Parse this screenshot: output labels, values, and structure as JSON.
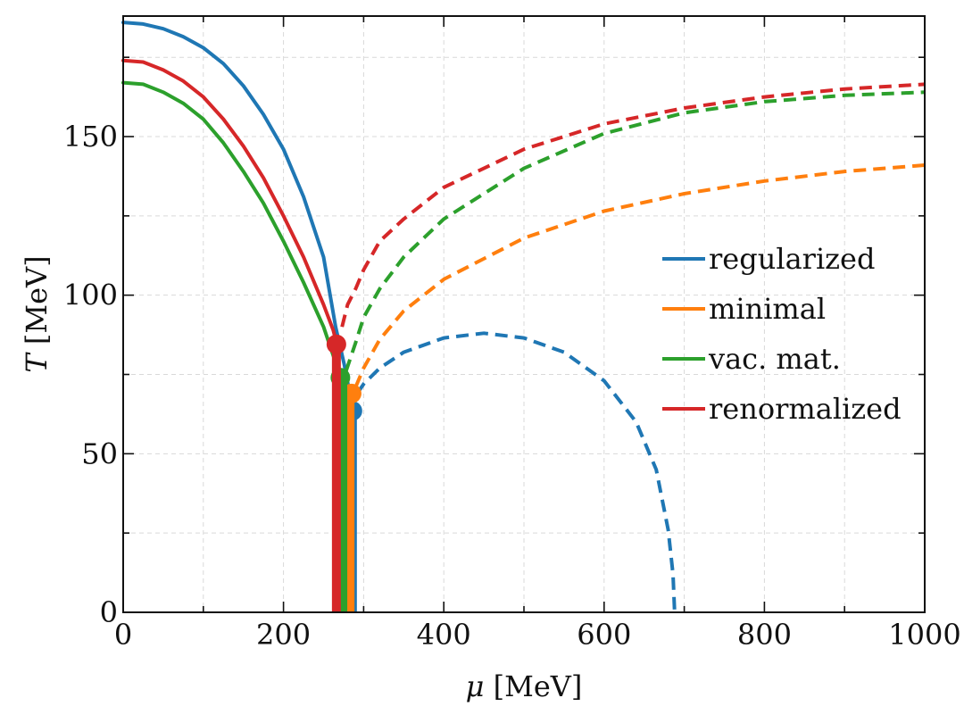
{
  "chart_data": {
    "type": "line",
    "title": "",
    "xlabel_var": "μ",
    "xlabel_unit": "[MeV]",
    "ylabel_var": "T",
    "ylabel_unit": "[MeV]",
    "xlim": [
      0,
      1000
    ],
    "ylim": [
      0,
      188
    ],
    "x_ticks": [
      0,
      200,
      400,
      600,
      800,
      1000
    ],
    "y_ticks": [
      0,
      50,
      100,
      150
    ],
    "x_minor_ticks": [
      100,
      300,
      500,
      700,
      900
    ],
    "y_minor_ticks": [
      25,
      75,
      125,
      175
    ],
    "grid": true,
    "legend_position": "center-right",
    "series": [
      {
        "name": "regularized",
        "color": "#1f77b4",
        "solid": [
          [
            0,
            186
          ],
          [
            25,
            185.5
          ],
          [
            50,
            184
          ],
          [
            75,
            181.5
          ],
          [
            100,
            178
          ],
          [
            125,
            173
          ],
          [
            150,
            166
          ],
          [
            175,
            157
          ],
          [
            200,
            146
          ],
          [
            225,
            131
          ],
          [
            250,
            112
          ],
          [
            265,
            90
          ],
          [
            276,
            78
          ],
          [
            282,
            70
          ],
          [
            286,
            64
          ]
        ],
        "dashed": [
          [
            292,
            69
          ],
          [
            300,
            72
          ],
          [
            320,
            77
          ],
          [
            350,
            82
          ],
          [
            400,
            86.5
          ],
          [
            450,
            88
          ],
          [
            500,
            86.5
          ],
          [
            550,
            82
          ],
          [
            600,
            73
          ],
          [
            640,
            60
          ],
          [
            665,
            45
          ],
          [
            680,
            26
          ],
          [
            686,
            12
          ],
          [
            688,
            0
          ]
        ],
        "critical_point": [
          286,
          63.5
        ],
        "first_order_line": [
          [
            286,
            0
          ],
          [
            286,
            63.5
          ]
        ]
      },
      {
        "name": "minimal",
        "color": "#ff7f0e",
        "solid": [
          [
            282,
            69
          ]
        ],
        "dashed": [
          [
            290,
            71
          ],
          [
            300,
            77
          ],
          [
            320,
            86
          ],
          [
            350,
            95
          ],
          [
            400,
            105
          ],
          [
            500,
            118
          ],
          [
            600,
            126.5
          ],
          [
            700,
            132
          ],
          [
            800,
            136
          ],
          [
            900,
            139
          ],
          [
            1000,
            141
          ]
        ],
        "critical_point": [
          285,
          69
        ],
        "first_order_line": [
          [
            283,
            0
          ],
          [
            283,
            69
          ]
        ]
      },
      {
        "name": "vac. mat.",
        "color": "#2ca02c",
        "solid": [
          [
            0,
            167
          ],
          [
            25,
            166.5
          ],
          [
            50,
            164
          ],
          [
            75,
            160.5
          ],
          [
            100,
            155.5
          ],
          [
            125,
            148
          ],
          [
            150,
            139
          ],
          [
            175,
            129
          ],
          [
            200,
            117
          ],
          [
            225,
            104
          ],
          [
            250,
            90
          ],
          [
            262,
            81
          ],
          [
            268,
            76
          ],
          [
            272,
            74
          ]
        ],
        "dashed": [
          [
            278,
            76
          ],
          [
            290,
            85
          ],
          [
            300,
            93
          ],
          [
            320,
            102
          ],
          [
            350,
            112
          ],
          [
            400,
            124
          ],
          [
            500,
            140
          ],
          [
            600,
            151
          ],
          [
            700,
            157.5
          ],
          [
            800,
            161
          ],
          [
            900,
            163
          ],
          [
            1000,
            164
          ]
        ],
        "critical_point": [
          271,
          74
        ],
        "first_order_line": [
          [
            274,
            0
          ],
          [
            274,
            74
          ]
        ]
      },
      {
        "name": "renormalized",
        "color": "#d62728",
        "solid": [
          [
            0,
            174
          ],
          [
            25,
            173.5
          ],
          [
            50,
            171
          ],
          [
            75,
            167.5
          ],
          [
            100,
            162.5
          ],
          [
            125,
            155.5
          ],
          [
            150,
            147
          ],
          [
            175,
            137
          ],
          [
            200,
            125
          ],
          [
            225,
            112
          ],
          [
            250,
            97
          ],
          [
            262,
            89
          ],
          [
            266,
            85
          ]
        ],
        "dashed": [
          [
            273,
            90
          ],
          [
            280,
            97
          ],
          [
            290,
            102
          ],
          [
            300,
            108
          ],
          [
            320,
            117
          ],
          [
            350,
            124
          ],
          [
            400,
            134
          ],
          [
            500,
            146
          ],
          [
            600,
            154
          ],
          [
            700,
            159
          ],
          [
            800,
            162.5
          ],
          [
            900,
            165
          ],
          [
            1000,
            166.5
          ]
        ],
        "critical_point": [
          266,
          84.5
        ],
        "first_order_line": [
          [
            266,
            0
          ],
          [
            266,
            84.5
          ]
        ]
      }
    ]
  }
}
